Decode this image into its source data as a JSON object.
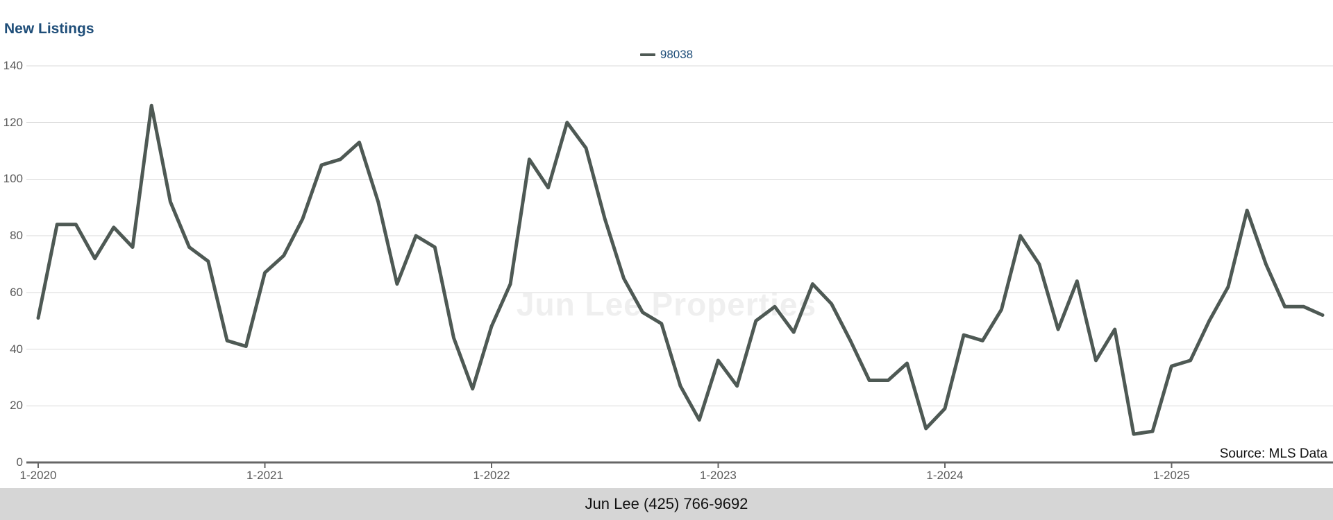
{
  "title": "New Listings",
  "legend": {
    "label": "98038"
  },
  "watermark": "Jun Lee Properties",
  "source": "Source: MLS Data",
  "footer": {
    "text": "Jun Lee (425) 766-9692"
  },
  "colors": {
    "line": "#4E5954",
    "title_text": "#1F4E79",
    "legend_text": "#1F4E79",
    "grid": "#D9D9D9",
    "axis": "#666666",
    "tick_text": "#595959",
    "watermark_text": "#EFEFEF",
    "footer_bg": "#D6D6D6",
    "footer_text": "#111111",
    "source_text": "#111111"
  },
  "chart_data": {
    "type": "line",
    "title": "New Listings",
    "series_name": "98038",
    "legend_position": "top-center",
    "grid": "horizontal",
    "ylim": [
      0,
      140
    ],
    "y_ticks": [
      0,
      20,
      40,
      60,
      80,
      100,
      120,
      140
    ],
    "x_tick_labels": [
      "1-2020",
      "1-2021",
      "1-2022",
      "1-2023",
      "1-2024",
      "1-2025"
    ],
    "x": [
      "1-2020",
      "2-2020",
      "3-2020",
      "4-2020",
      "5-2020",
      "6-2020",
      "7-2020",
      "8-2020",
      "9-2020",
      "10-2020",
      "11-2020",
      "12-2020",
      "1-2021",
      "2-2021",
      "3-2021",
      "4-2021",
      "5-2021",
      "6-2021",
      "7-2021",
      "8-2021",
      "9-2021",
      "10-2021",
      "11-2021",
      "12-2021",
      "1-2022",
      "2-2022",
      "3-2022",
      "4-2022",
      "5-2022",
      "6-2022",
      "7-2022",
      "8-2022",
      "9-2022",
      "10-2022",
      "11-2022",
      "12-2022",
      "1-2023",
      "2-2023",
      "3-2023",
      "4-2023",
      "5-2023",
      "6-2023",
      "7-2023",
      "8-2023",
      "9-2023",
      "10-2023",
      "11-2023",
      "12-2023",
      "1-2024",
      "2-2024",
      "3-2024",
      "4-2024",
      "5-2024",
      "6-2024",
      "7-2024",
      "8-2024",
      "9-2024",
      "10-2024",
      "11-2024",
      "12-2024",
      "1-2025",
      "2-2025",
      "3-2025",
      "4-2025",
      "5-2025",
      "6-2025",
      "7-2025",
      "8-2025",
      "9-2025"
    ],
    "values": [
      51,
      84,
      84,
      72,
      83,
      76,
      126,
      92,
      76,
      71,
      43,
      41,
      67,
      73,
      86,
      105,
      107,
      113,
      92,
      63,
      80,
      76,
      44,
      26,
      48,
      63,
      107,
      97,
      120,
      111,
      86,
      65,
      53,
      49,
      27,
      15,
      36,
      27,
      50,
      55,
      46,
      63,
      56,
      43,
      29,
      29,
      35,
      12,
      19,
      45,
      43,
      54,
      80,
      70,
      47,
      64,
      36,
      47,
      10,
      11,
      34,
      36,
      50,
      62,
      89,
      70,
      55,
      55,
      52
    ]
  }
}
